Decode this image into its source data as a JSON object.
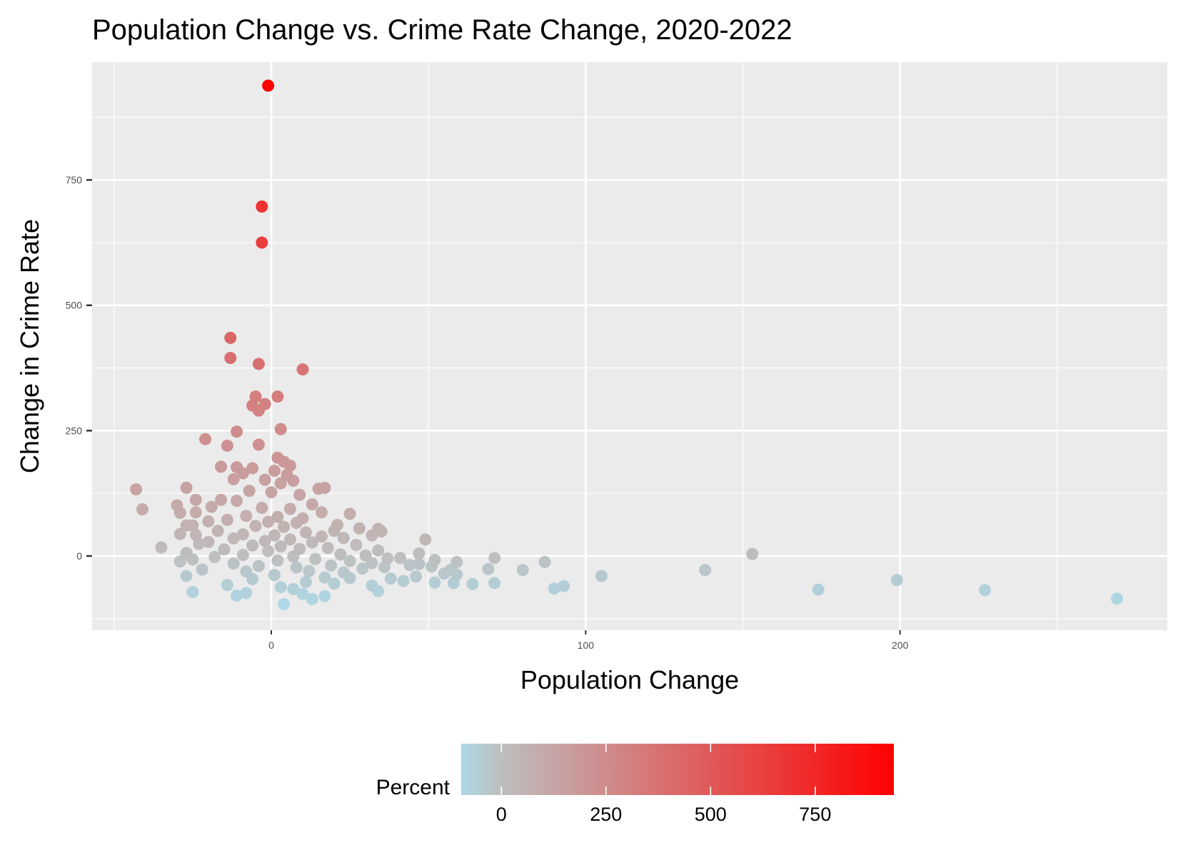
{
  "chart_data": {
    "type": "scatter",
    "title": "Population Change vs. Crime Rate Change, 2020-2022",
    "xlabel": "Population Change",
    "ylabel": "Change in Crime Rate",
    "xlim": [
      -57,
      285
    ],
    "ylim": [
      -148,
      985
    ],
    "x_ticks": [
      0,
      100,
      200
    ],
    "x_tick_labels": [
      "0",
      "100",
      "200"
    ],
    "y_ticks": [
      0,
      250,
      500,
      750
    ],
    "y_tick_labels": [
      "0",
      "250",
      "500",
      "750"
    ],
    "grid": true,
    "color_scale": {
      "title": "Percent",
      "variable": "Change in Crime Rate",
      "range": [
        -96,
        938
      ],
      "low_color": "#add8e6",
      "mid_color": "#bebebe",
      "mid_value": 0,
      "high_color": "#ff0000",
      "ticks": [
        0,
        250,
        500,
        750
      ],
      "tick_labels": [
        "0",
        "250",
        "500",
        "750"
      ],
      "placement": "bottom"
    },
    "points": [
      {
        "x": -1,
        "y": 938
      },
      {
        "x": -3,
        "y": 697
      },
      {
        "x": -3,
        "y": 625
      },
      {
        "x": -13,
        "y": 435
      },
      {
        "x": -13,
        "y": 395
      },
      {
        "x": -4,
        "y": 383
      },
      {
        "x": 10,
        "y": 372
      },
      {
        "x": -5,
        "y": 318
      },
      {
        "x": 2,
        "y": 318
      },
      {
        "x": -2,
        "y": 303
      },
      {
        "x": -6,
        "y": 300
      },
      {
        "x": -4,
        "y": 290
      },
      {
        "x": 3,
        "y": 253
      },
      {
        "x": -11,
        "y": 248
      },
      {
        "x": -21,
        "y": 233
      },
      {
        "x": -4,
        "y": 222
      },
      {
        "x": -14,
        "y": 220
      },
      {
        "x": 2,
        "y": 196
      },
      {
        "x": 4,
        "y": 188
      },
      {
        "x": 6,
        "y": 180
      },
      {
        "x": -16,
        "y": 178
      },
      {
        "x": -11,
        "y": 177
      },
      {
        "x": -6,
        "y": 175
      },
      {
        "x": 1,
        "y": 170
      },
      {
        "x": 5,
        "y": 162
      },
      {
        "x": -9,
        "y": 165
      },
      {
        "x": -12,
        "y": 153
      },
      {
        "x": 7,
        "y": 150
      },
      {
        "x": -2,
        "y": 152
      },
      {
        "x": 3,
        "y": 145
      },
      {
        "x": -43,
        "y": 133
      },
      {
        "x": -27,
        "y": 136
      },
      {
        "x": 17,
        "y": 136
      },
      {
        "x": 15,
        "y": 134
      },
      {
        "x": -7,
        "y": 130
      },
      {
        "x": 0,
        "y": 127
      },
      {
        "x": 9,
        "y": 122
      },
      {
        "x": -16,
        "y": 112
      },
      {
        "x": -24,
        "y": 112
      },
      {
        "x": -11,
        "y": 110
      },
      {
        "x": 13,
        "y": 103
      },
      {
        "x": -30,
        "y": 101
      },
      {
        "x": -19,
        "y": 98
      },
      {
        "x": -3,
        "y": 96
      },
      {
        "x": 6,
        "y": 94
      },
      {
        "x": -41,
        "y": 93
      },
      {
        "x": -29,
        "y": 86
      },
      {
        "x": -24,
        "y": 87
      },
      {
        "x": 16,
        "y": 87
      },
      {
        "x": 25,
        "y": 84
      },
      {
        "x": -8,
        "y": 80
      },
      {
        "x": 2,
        "y": 78
      },
      {
        "x": 10,
        "y": 75
      },
      {
        "x": -14,
        "y": 72
      },
      {
        "x": -20,
        "y": 69
      },
      {
        "x": -1,
        "y": 68
      },
      {
        "x": 8,
        "y": 66
      },
      {
        "x": 21,
        "y": 62
      },
      {
        "x": -27,
        "y": 61
      },
      {
        "x": -25,
        "y": 61
      },
      {
        "x": -5,
        "y": 60
      },
      {
        "x": 4,
        "y": 58
      },
      {
        "x": 28,
        "y": 55
      },
      {
        "x": 34,
        "y": 54
      },
      {
        "x": 35,
        "y": 49
      },
      {
        "x": 20,
        "y": 50
      },
      {
        "x": -17,
        "y": 50
      },
      {
        "x": 11,
        "y": 47
      },
      {
        "x": -29,
        "y": 44
      },
      {
        "x": -24,
        "y": 42
      },
      {
        "x": -9,
        "y": 43
      },
      {
        "x": 1,
        "y": 41
      },
      {
        "x": 32,
        "y": 41
      },
      {
        "x": 16,
        "y": 39
      },
      {
        "x": 23,
        "y": 36
      },
      {
        "x": -12,
        "y": 35
      },
      {
        "x": 6,
        "y": 33
      },
      {
        "x": 49,
        "y": 33
      },
      {
        "x": -2,
        "y": 30
      },
      {
        "x": -20,
        "y": 28
      },
      {
        "x": 13,
        "y": 27
      },
      {
        "x": -23,
        "y": 24
      },
      {
        "x": 27,
        "y": 22
      },
      {
        "x": -6,
        "y": 21
      },
      {
        "x": 3,
        "y": 19
      },
      {
        "x": -35,
        "y": 17
      },
      {
        "x": 18,
        "y": 16
      },
      {
        "x": 9,
        "y": 14
      },
      {
        "x": -15,
        "y": 13
      },
      {
        "x": 34,
        "y": 11
      },
      {
        "x": -1,
        "y": 10
      },
      {
        "x": -27,
        "y": 6
      },
      {
        "x": 47,
        "y": 5
      },
      {
        "x": 153,
        "y": 4
      },
      {
        "x": 22,
        "y": 3
      },
      {
        "x": -9,
        "y": 2
      },
      {
        "x": 30,
        "y": 1
      },
      {
        "x": 7,
        "y": -1
      },
      {
        "x": -18,
        "y": -2
      },
      {
        "x": 71,
        "y": -4
      },
      {
        "x": 41,
        "y": -4
      },
      {
        "x": 37,
        "y": -5
      },
      {
        "x": 14,
        "y": -6
      },
      {
        "x": -25,
        "y": -7
      },
      {
        "x": 52,
        "y": -8
      },
      {
        "x": 2,
        "y": -9
      },
      {
        "x": 25,
        "y": -10
      },
      {
        "x": -29,
        "y": -11
      },
      {
        "x": 59,
        "y": -12
      },
      {
        "x": 87,
        "y": -12
      },
      {
        "x": 32,
        "y": -14
      },
      {
        "x": -12,
        "y": -15
      },
      {
        "x": 47,
        "y": -16
      },
      {
        "x": 44,
        "y": -18
      },
      {
        "x": 19,
        "y": -19
      },
      {
        "x": -4,
        "y": -20
      },
      {
        "x": 51,
        "y": -21
      },
      {
        "x": 36,
        "y": -22
      },
      {
        "x": 8,
        "y": -23
      },
      {
        "x": 29,
        "y": -25
      },
      {
        "x": 69,
        "y": -26
      },
      {
        "x": -22,
        "y": -27
      },
      {
        "x": 57,
        "y": -28
      },
      {
        "x": 80,
        "y": -28
      },
      {
        "x": 138,
        "y": -28
      },
      {
        "x": 12,
        "y": -30
      },
      {
        "x": -8,
        "y": -31
      },
      {
        "x": 23,
        "y": -33
      },
      {
        "x": 55,
        "y": -35
      },
      {
        "x": 59,
        "y": -37
      },
      {
        "x": 1,
        "y": -38
      },
      {
        "x": -27,
        "y": -40
      },
      {
        "x": 46,
        "y": -41
      },
      {
        "x": 105,
        "y": -40
      },
      {
        "x": 17,
        "y": -43
      },
      {
        "x": 25,
        "y": -44
      },
      {
        "x": 38,
        "y": -45
      },
      {
        "x": -6,
        "y": -46
      },
      {
        "x": 199,
        "y": -48
      },
      {
        "x": 42,
        "y": -50
      },
      {
        "x": 11,
        "y": -52
      },
      {
        "x": 52,
        "y": -53
      },
      {
        "x": 58,
        "y": -54
      },
      {
        "x": 71,
        "y": -54
      },
      {
        "x": 20,
        "y": -55
      },
      {
        "x": 64,
        "y": -56
      },
      {
        "x": -14,
        "y": -58
      },
      {
        "x": 32,
        "y": -59
      },
      {
        "x": 93,
        "y": -60
      },
      {
        "x": 3,
        "y": -62
      },
      {
        "x": 90,
        "y": -65
      },
      {
        "x": 7,
        "y": -66
      },
      {
        "x": 174,
        "y": -67
      },
      {
        "x": 227,
        "y": -68
      },
      {
        "x": 34,
        "y": -70
      },
      {
        "x": -25,
        "y": -72
      },
      {
        "x": -8,
        "y": -74
      },
      {
        "x": 10,
        "y": -76
      },
      {
        "x": -11,
        "y": -79
      },
      {
        "x": 17,
        "y": -80
      },
      {
        "x": 269,
        "y": -85
      },
      {
        "x": 13,
        "y": -86
      },
      {
        "x": 4,
        "y": -96
      }
    ]
  }
}
